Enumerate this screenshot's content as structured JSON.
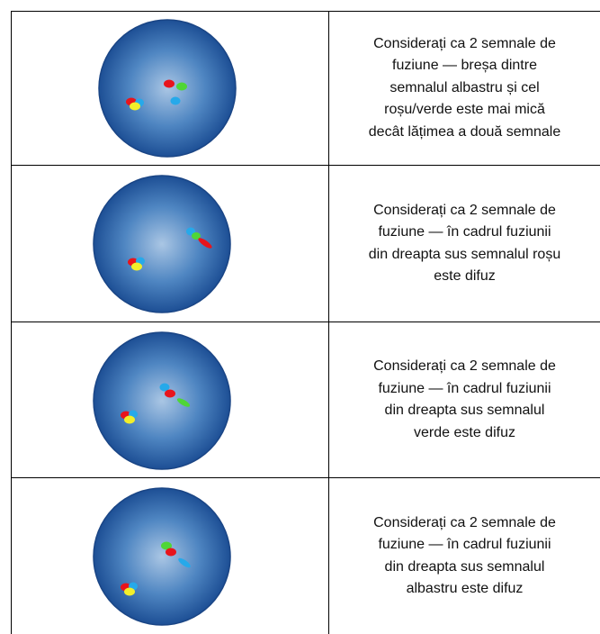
{
  "rows": [
    {
      "lines": [
        "Considerați ca 2 semnale de",
        "fuziune — breșa dintre",
        "semnalul albastru și cel",
        "roșu/verde este mai mică",
        "decât lățimea a două semnale"
      ]
    },
    {
      "lines": [
        "Considerați ca 2 semnale de",
        "fuziune — în cadrul fuziunii",
        "din dreapta sus semnalul roșu",
        "este difuz"
      ]
    },
    {
      "lines": [
        "Considerați ca 2 semnale de",
        "fuziune — în cadrul fuziunii",
        "din dreapta sus semnalul",
        "verde este difuz"
      ]
    },
    {
      "lines": [
        "Considerați ca 2 semnale de",
        "fuziune — în cadrul fuziunii",
        "din dreapta sus semnalul",
        "albastru este difuz"
      ]
    }
  ]
}
